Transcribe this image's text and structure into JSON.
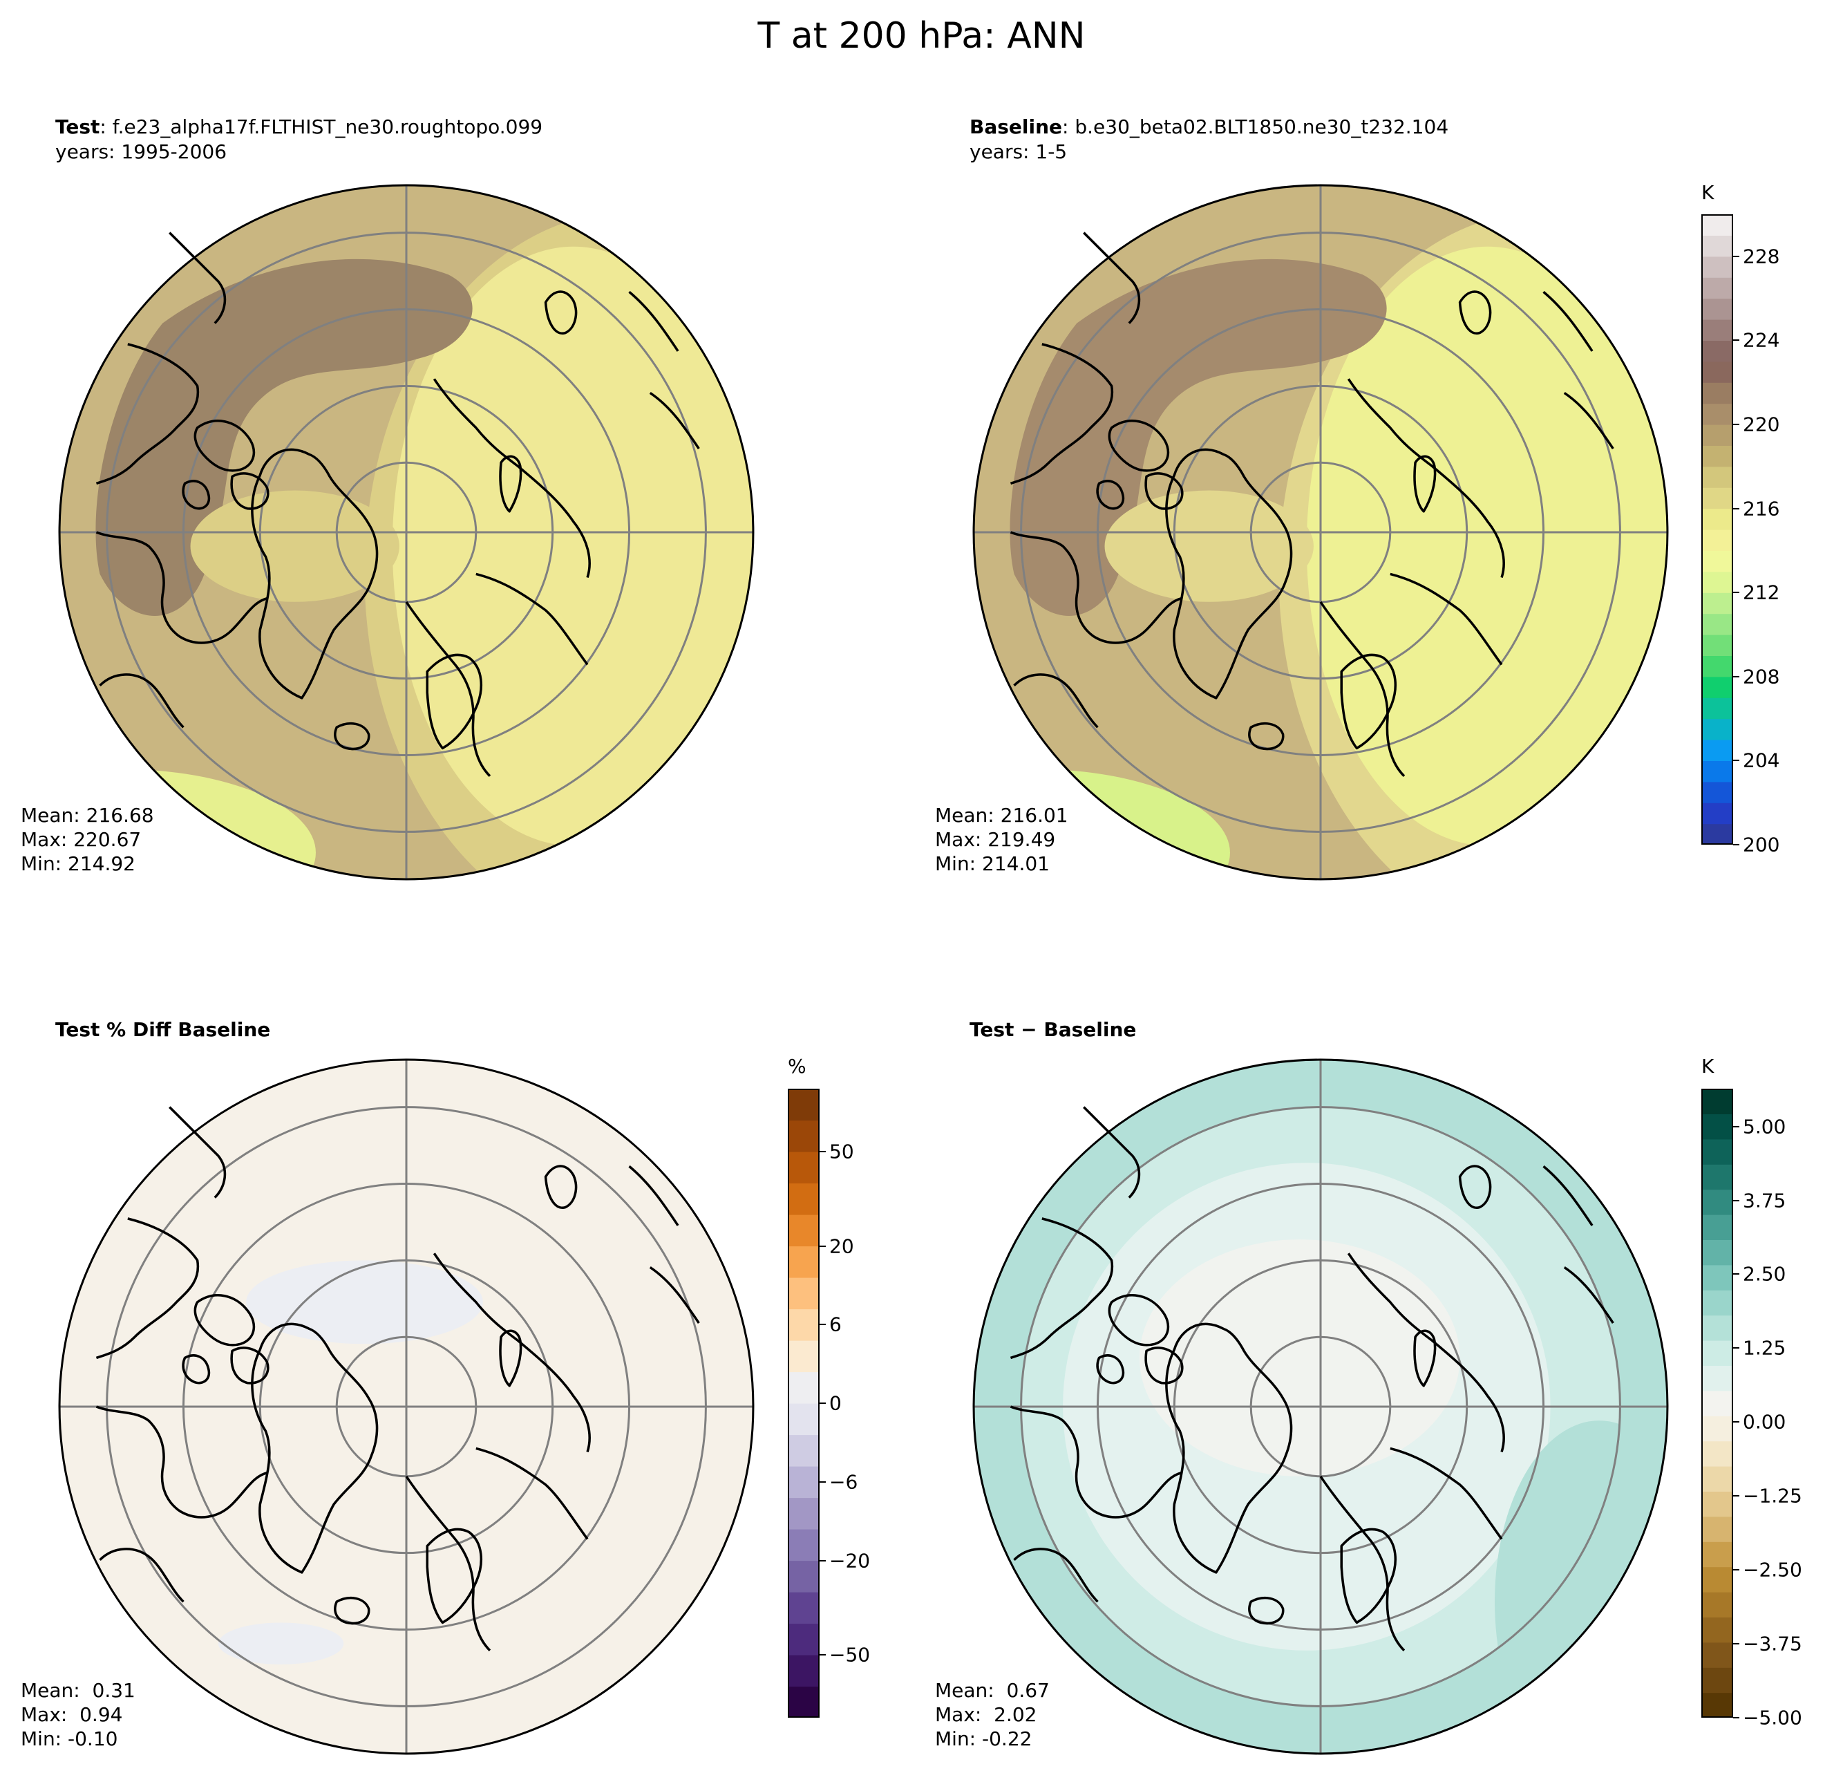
{
  "figure": {
    "title": "T at 200 hPa: ANN"
  },
  "panels": {
    "test": {
      "label": "Test",
      "case": ": f.e23_alpha17f.FLTHIST_ne30.roughtopo.099",
      "years": "years: 1995-2006",
      "mean": "Mean: 216.68",
      "max": "Max: 220.67",
      "min": "Min: 214.92",
      "colors": {
        "dark": "#9c8568",
        "mid": "#c9b681",
        "light": "#dccf86",
        "pale": "#efe996",
        "edge": "#e6f08f"
      }
    },
    "baseline": {
      "label": "Baseline",
      "case": ": b.e30_beta02.BLT1850.ne30_t232.104",
      "years": "years: 1-5",
      "mean": "Mean: 216.01",
      "max": "Max: 219.49",
      "min": "Min: 214.01",
      "colors": {
        "dark": "#a58b6d",
        "mid": "#c9b681",
        "light": "#e2d78e",
        "pale": "#eef194",
        "edge": "#d8f28a"
      }
    },
    "pct_diff": {
      "label": "Test % Diff Baseline",
      "mean": "Mean:  0.31",
      "max": "Max:  0.94",
      "min": "Min: -0.10",
      "colors": {
        "background": "#f6f1e8",
        "negative_patch": "#eceef3"
      }
    },
    "diff": {
      "label": "Test",
      "label_suffix": " − Baseline",
      "mean": "Mean:  0.67",
      "max": "Max:  2.02",
      "min": "Min: -0.22",
      "colors": {
        "strong": "#b3e0d8",
        "mid": "#cfece6",
        "weak": "#e4f2ef",
        "neutral": "#f1f3ef"
      }
    }
  },
  "colorbars": {
    "temperature": {
      "unit": "K",
      "ticks": [
        "228",
        "224",
        "220",
        "216",
        "212",
        "208",
        "204",
        "200"
      ],
      "colors": [
        "#2b3aa0",
        "#233ec6",
        "#1456d8",
        "#0a79ea",
        "#0a9bf2",
        "#09b2c9",
        "#0cc29a",
        "#10cf6e",
        "#43d86d",
        "#72df78",
        "#99e786",
        "#bdef8f",
        "#def693",
        "#f0f89a",
        "#f3f197",
        "#ecea8b",
        "#e0d786",
        "#d3c77c",
        "#c4b271",
        "#b69f6d",
        "#a98e6a",
        "#9a7d62",
        "#8a685d",
        "#8a6a65",
        "#9a7e7a",
        "#ab9492",
        "#bdaaa9",
        "#cec0c0",
        "#e0d8d8",
        "#f0ecec"
      ]
    },
    "percent": {
      "unit": "%",
      "ticks": [
        "50",
        "20",
        "6",
        "0",
        "−6",
        "−20",
        "−50"
      ],
      "colors": [
        "#2b0445",
        "#3c1563",
        "#4d2b7d",
        "#5f4391",
        "#7663a4",
        "#8b7db6",
        "#a297c5",
        "#b9b3d6",
        "#cfcce3",
        "#e3e3ee",
        "#eeeef1",
        "#fbead0",
        "#fdd8a9",
        "#fdc07e",
        "#f7a44f",
        "#e8872a",
        "#d26d12",
        "#b8580a",
        "#9b4708",
        "#7f3b08"
      ]
    },
    "kelvin_diff": {
      "unit": "K",
      "ticks": [
        "5.00",
        "3.75",
        "2.50",
        "1.25",
        "0.00",
        "−1.25",
        "−2.50",
        "−3.75",
        "−5.00"
      ],
      "colors": [
        "#583805",
        "#6d4710",
        "#80561a",
        "#93661f",
        "#a77828",
        "#b98a33",
        "#c99e4c",
        "#d7b46f",
        "#e3c78c",
        "#ecd8a9",
        "#f3e6c6",
        "#f5efdf",
        "#f3f3ef",
        "#e1f1ed",
        "#cdece5",
        "#b4e1d8",
        "#9ad5cb",
        "#7ec6bb",
        "#62b3a8",
        "#489f94",
        "#318b80",
        "#1e776c",
        "#0e6359",
        "#035046",
        "#003c30"
      ]
    }
  }
}
